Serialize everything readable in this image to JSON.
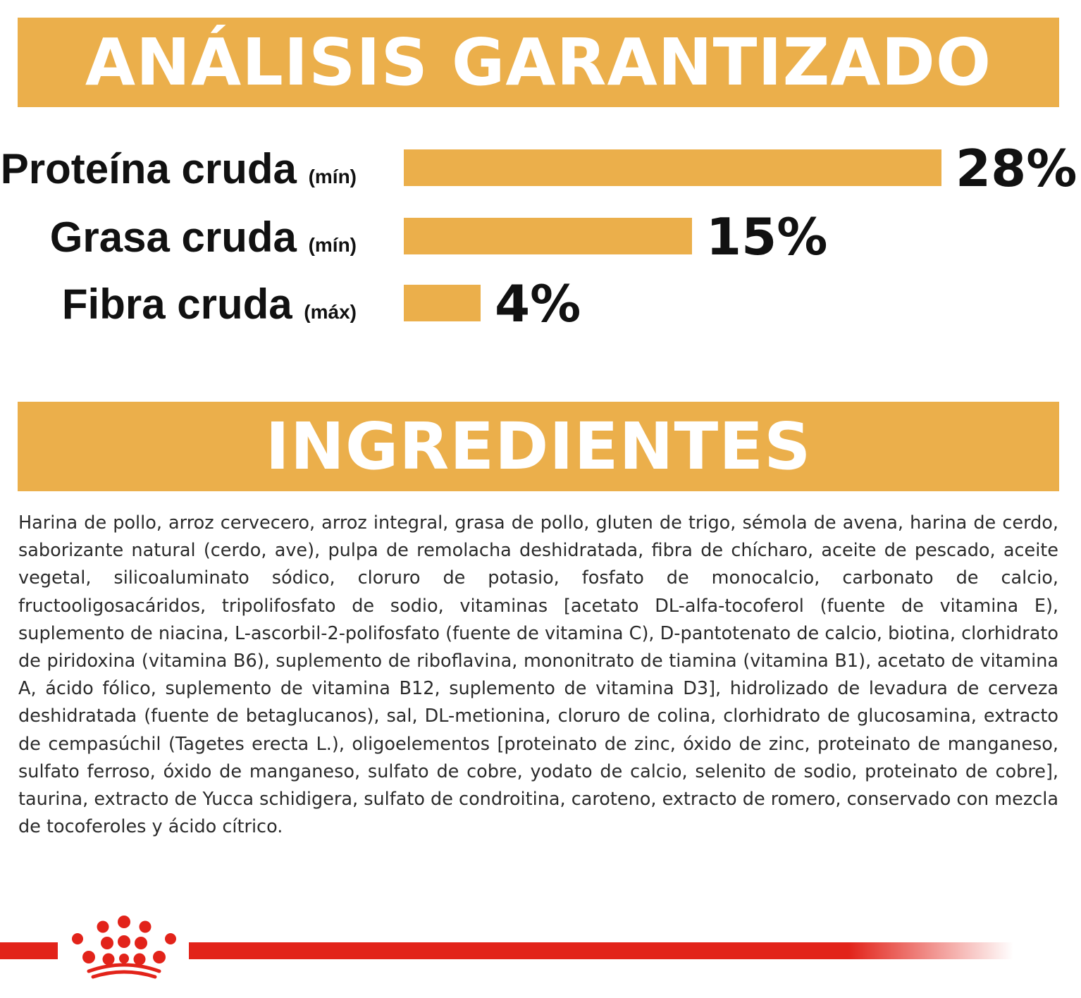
{
  "analysis": {
    "title": "ANÁLISIS GARANTIZADO"
  },
  "chart_data": {
    "type": "bar",
    "orientation": "horizontal",
    "title": "ANÁLISIS GARANTIZADO",
    "categories": [
      "Proteína cruda",
      "Grasa cruda",
      "Fibra cruda"
    ],
    "qualifiers": [
      "(mín)",
      "(mín)",
      "(máx)"
    ],
    "values": [
      28,
      15,
      4
    ],
    "value_labels": [
      "28%",
      "15%",
      "4%"
    ],
    "unit": "%",
    "xlim": [
      0,
      28
    ],
    "grid": false,
    "legend": "none",
    "bar_color": "#ebaf4b"
  },
  "ingredients": {
    "title": "INGREDIENTES",
    "text": "Harina de pollo, arroz cervecero, arroz integral, grasa de pollo, gluten de trigo, sémola de avena, harina de cerdo, saborizante natural (cerdo, ave), pulpa de remolacha deshidratada, fibra de chícharo, aceite de pescado, aceite vegetal, silicoaluminato sódico, cloruro de potasio, fosfato de monocalcio, carbonato de calcio, fructooligosacáridos, tripolifosfato de sodio, vitaminas [acetato DL-alfa-tocoferol (fuente de vitamina E), suplemento de niacina, L-ascorbil-2-polifosfato (fuente de vitamina C), D-pantotenato de calcio, biotina, clorhidrato de piridoxina (vitamina B6), suplemento de riboflavina, mononitrato de tiamina (vitamina B1), acetato de vitamina A, ácido fólico, suplemento de vitamina B12, suplemento de vitamina D3], hidrolizado de levadura de cerveza deshidratada (fuente de betaglucanos), sal, DL-metionina, cloruro de colina, clorhidrato de glucosamina, extracto de cempasúchil (Tagetes erecta L.), oligoelementos [proteinato de zinc, óxido de zinc, proteinato de manganeso, sulfato ferroso, óxido de manganeso, sulfato de cobre, yodato de calcio, selenito de sodio, proteinato de cobre], taurina, extracto de Yucca schidigera, sulfato de condroitina, caroteno, extracto de romero, conservado con mezcla de tocoferoles y ácido cítrico."
  },
  "brand": {
    "logo_icon": "royal-canin-crown-icon",
    "accent_color": "#e2231a"
  }
}
